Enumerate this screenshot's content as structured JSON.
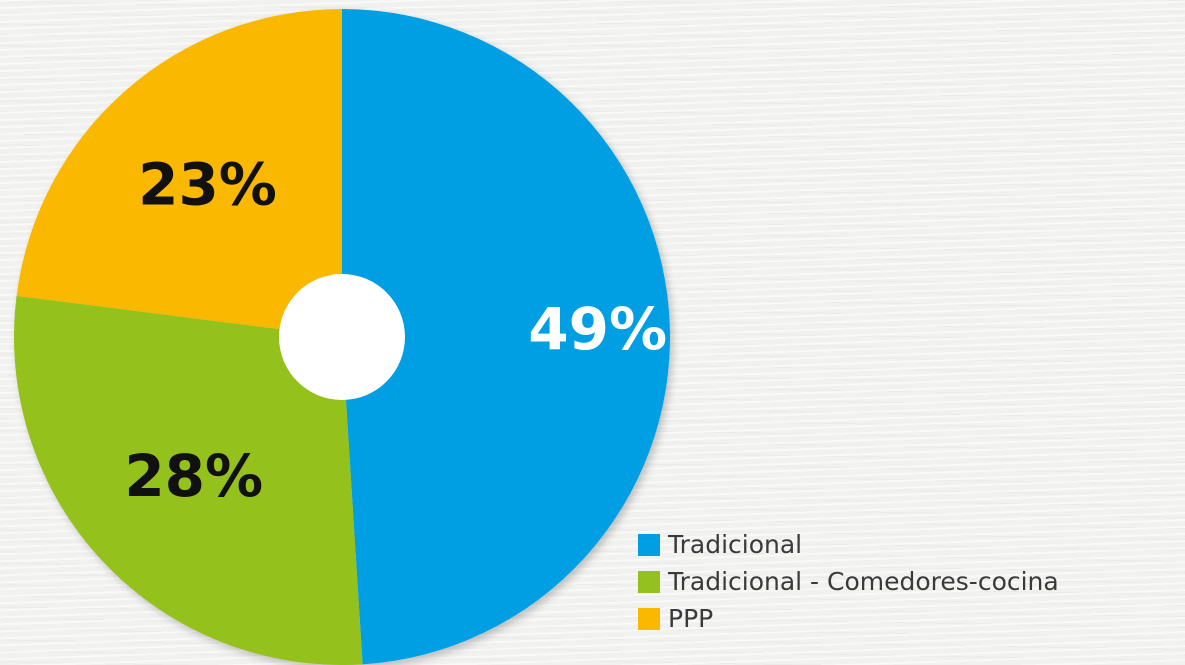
{
  "chart_data": {
    "type": "pie",
    "title": "",
    "categories": [
      "Tradicional",
      "Tradicional - Comedores-cocina",
      "PPP"
    ],
    "values": [
      49,
      28,
      23
    ],
    "value_labels": [
      "49%",
      "28%",
      "23%"
    ],
    "colors": [
      "#009fe3",
      "#95c11f",
      "#fbb800"
    ],
    "label_colors": [
      "#ffffff",
      "#111111",
      "#111111"
    ],
    "donut_hole": true,
    "legend_position": "bottom-right"
  }
}
